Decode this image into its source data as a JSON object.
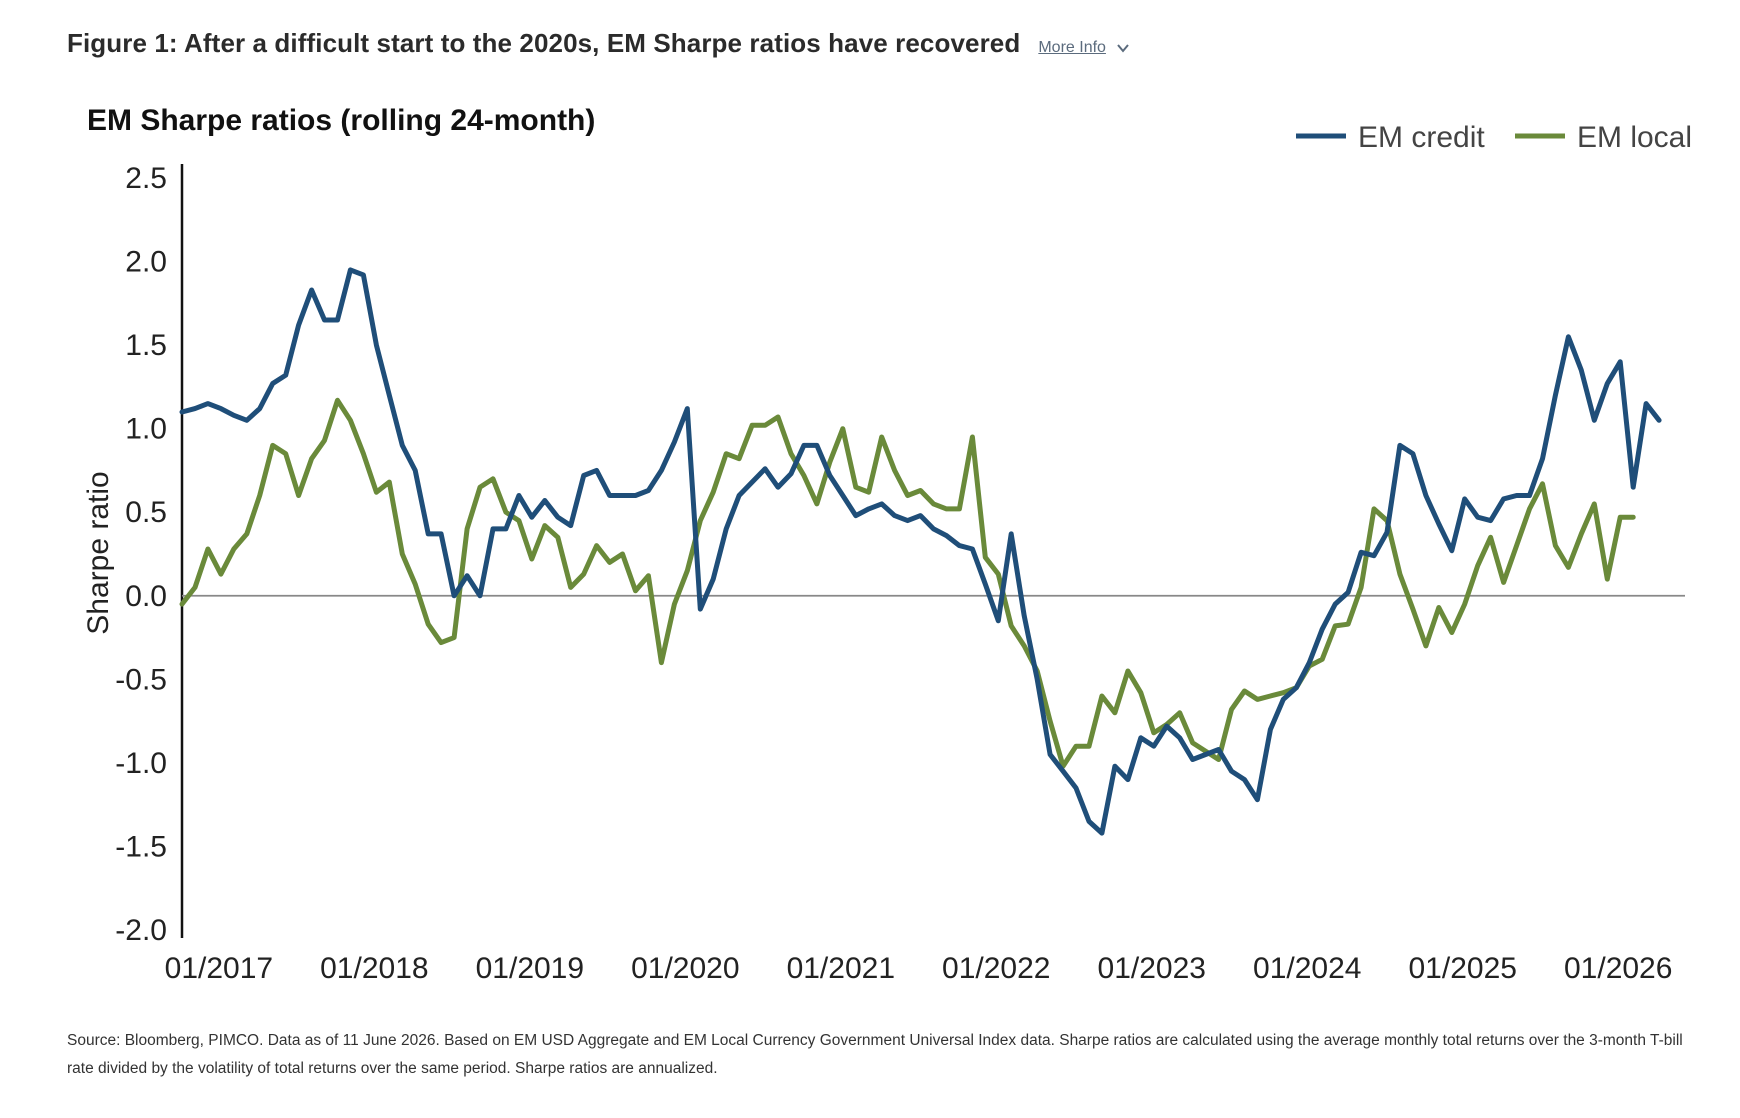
{
  "figure": {
    "title": "Figure 1: After a difficult start to the 2020s, EM Sharpe ratios have recovered",
    "more_info_label": "More Info"
  },
  "source_note": "Source: Bloomberg, PIMCO. Data as of 11 June 2026. Based on EM USD Aggregate and EM Local Currency Government Universal Index data. Sharpe ratios are calculated using the average monthly total returns over the 3-month T-bill rate divided by the volatility of total returns over the same period. Sharpe ratios are annualized.",
  "colors": {
    "em_credit": "#1f4e79",
    "em_local": "#6a8a3a",
    "axis": "#111111",
    "zero_line": "#888888"
  },
  "chart_data": {
    "type": "line",
    "title": "EM Sharpe ratios (rolling 24-month)",
    "xlabel": "",
    "ylabel": "Sharpe ratio",
    "ylim": [
      -2.0,
      2.5
    ],
    "yticks": [
      "2.5",
      "2.0",
      "1.5",
      "1.0",
      "0.5",
      "0.0",
      "-0.5",
      "-1.0",
      "-1.5",
      "-2.0"
    ],
    "xlim": [
      "2016-10",
      "2026-06"
    ],
    "xticks": [
      {
        "label": "01/2017",
        "date": "2017-01"
      },
      {
        "label": "01/2018",
        "date": "2018-01"
      },
      {
        "label": "01/2019",
        "date": "2019-01"
      },
      {
        "label": "01/2020",
        "date": "2020-01"
      },
      {
        "label": "01/2021",
        "date": "2021-01"
      },
      {
        "label": "01/2022",
        "date": "2022-01"
      },
      {
        "label": "01/2023",
        "date": "2023-01"
      },
      {
        "label": "01/2024",
        "date": "2024-01"
      },
      {
        "label": "01/2025",
        "date": "2025-01"
      },
      {
        "label": "01/2026",
        "date": "2026-01"
      }
    ],
    "grid": false,
    "legend_position": "top-right",
    "series": [
      {
        "name": "EM credit",
        "points": [
          [
            "2016-10",
            1.1
          ],
          [
            "2016-11",
            1.12
          ],
          [
            "2016-12",
            1.15
          ],
          [
            "2017-01",
            1.12
          ],
          [
            "2017-02",
            1.08
          ],
          [
            "2017-03",
            1.05
          ],
          [
            "2017-04",
            1.12
          ],
          [
            "2017-05",
            1.27
          ],
          [
            "2017-06",
            1.32
          ],
          [
            "2017-07",
            1.62
          ],
          [
            "2017-08",
            1.83
          ],
          [
            "2017-09",
            1.65
          ],
          [
            "2017-10",
            1.65
          ],
          [
            "2017-11",
            1.95
          ],
          [
            "2017-12",
            1.92
          ],
          [
            "2018-01",
            1.5
          ],
          [
            "2018-02",
            1.2
          ],
          [
            "2018-03",
            0.9
          ],
          [
            "2018-04",
            0.75
          ],
          [
            "2018-05",
            0.37
          ],
          [
            "2018-06",
            0.37
          ],
          [
            "2018-07",
            0.0
          ],
          [
            "2018-08",
            0.12
          ],
          [
            "2018-09",
            0.0
          ],
          [
            "2018-10",
            0.4
          ],
          [
            "2018-11",
            0.4
          ],
          [
            "2018-12",
            0.6
          ],
          [
            "2019-01",
            0.47
          ],
          [
            "2019-02",
            0.57
          ],
          [
            "2019-03",
            0.47
          ],
          [
            "2019-04",
            0.42
          ],
          [
            "2019-05",
            0.72
          ],
          [
            "2019-06",
            0.75
          ],
          [
            "2019-07",
            0.6
          ],
          [
            "2019-08",
            0.6
          ],
          [
            "2019-09",
            0.6
          ],
          [
            "2019-10",
            0.63
          ],
          [
            "2019-11",
            0.75
          ],
          [
            "2019-12",
            0.92
          ],
          [
            "2020-01",
            1.12
          ],
          [
            "2020-02",
            -0.08
          ],
          [
            "2020-03",
            0.1
          ],
          [
            "2020-04",
            0.4
          ],
          [
            "2020-05",
            0.6
          ],
          [
            "2020-06",
            0.68
          ],
          [
            "2020-07",
            0.76
          ],
          [
            "2020-08",
            0.65
          ],
          [
            "2020-09",
            0.73
          ],
          [
            "2020-10",
            0.9
          ],
          [
            "2020-11",
            0.9
          ],
          [
            "2020-12",
            0.72
          ],
          [
            "2021-01",
            0.6
          ],
          [
            "2021-02",
            0.48
          ],
          [
            "2021-03",
            0.52
          ],
          [
            "2021-04",
            0.55
          ],
          [
            "2021-05",
            0.48
          ],
          [
            "2021-06",
            0.45
          ],
          [
            "2021-07",
            0.48
          ],
          [
            "2021-08",
            0.4
          ],
          [
            "2021-09",
            0.36
          ],
          [
            "2021-10",
            0.3
          ],
          [
            "2021-11",
            0.28
          ],
          [
            "2021-12",
            0.07
          ],
          [
            "2022-01",
            -0.15
          ],
          [
            "2022-02",
            0.37
          ],
          [
            "2022-03",
            -0.12
          ],
          [
            "2022-04",
            -0.5
          ],
          [
            "2022-05",
            -0.95
          ],
          [
            "2022-06",
            -1.05
          ],
          [
            "2022-07",
            -1.15
          ],
          [
            "2022-08",
            -1.35
          ],
          [
            "2022-09",
            -1.42
          ],
          [
            "2022-10",
            -1.02
          ],
          [
            "2022-11",
            -1.1
          ],
          [
            "2022-12",
            -0.85
          ],
          [
            "2023-01",
            -0.9
          ],
          [
            "2023-02",
            -0.78
          ],
          [
            "2023-03",
            -0.85
          ],
          [
            "2023-04",
            -0.98
          ],
          [
            "2023-05",
            -0.95
          ],
          [
            "2023-06",
            -0.92
          ],
          [
            "2023-07",
            -1.05
          ],
          [
            "2023-08",
            -1.1
          ],
          [
            "2023-09",
            -1.22
          ],
          [
            "2023-10",
            -0.8
          ],
          [
            "2023-11",
            -0.62
          ],
          [
            "2023-12",
            -0.55
          ],
          [
            "2024-01",
            -0.4
          ],
          [
            "2024-02",
            -0.2
          ],
          [
            "2024-03",
            -0.05
          ],
          [
            "2024-04",
            0.02
          ],
          [
            "2024-05",
            0.26
          ],
          [
            "2024-06",
            0.24
          ],
          [
            "2024-07",
            0.38
          ],
          [
            "2024-08",
            0.9
          ],
          [
            "2024-09",
            0.85
          ],
          [
            "2024-10",
            0.6
          ],
          [
            "2024-11",
            0.43
          ],
          [
            "2024-12",
            0.27
          ],
          [
            "2025-01",
            0.58
          ],
          [
            "2025-02",
            0.47
          ],
          [
            "2025-03",
            0.45
          ],
          [
            "2025-04",
            0.58
          ],
          [
            "2025-05",
            0.6
          ],
          [
            "2025-06",
            0.6
          ],
          [
            "2025-07",
            0.82
          ],
          [
            "2025-08",
            1.2
          ],
          [
            "2025-09",
            1.55
          ],
          [
            "2025-10",
            1.35
          ],
          [
            "2025-11",
            1.05
          ],
          [
            "2025-12",
            1.27
          ],
          [
            "2026-01",
            1.4
          ],
          [
            "2026-02",
            0.65
          ],
          [
            "2026-03",
            1.15
          ],
          [
            "2026-04",
            1.05
          ]
        ]
      },
      {
        "name": "EM local",
        "points": [
          [
            "2016-10",
            -0.05
          ],
          [
            "2016-11",
            0.05
          ],
          [
            "2016-12",
            0.28
          ],
          [
            "2017-01",
            0.13
          ],
          [
            "2017-02",
            0.28
          ],
          [
            "2017-03",
            0.37
          ],
          [
            "2017-04",
            0.6
          ],
          [
            "2017-05",
            0.9
          ],
          [
            "2017-06",
            0.85
          ],
          [
            "2017-07",
            0.6
          ],
          [
            "2017-08",
            0.82
          ],
          [
            "2017-09",
            0.93
          ],
          [
            "2017-10",
            1.17
          ],
          [
            "2017-11",
            1.05
          ],
          [
            "2017-12",
            0.85
          ],
          [
            "2018-01",
            0.62
          ],
          [
            "2018-02",
            0.68
          ],
          [
            "2018-03",
            0.25
          ],
          [
            "2018-04",
            0.07
          ],
          [
            "2018-05",
            -0.17
          ],
          [
            "2018-06",
            -0.28
          ],
          [
            "2018-07",
            -0.25
          ],
          [
            "2018-08",
            0.4
          ],
          [
            "2018-09",
            0.65
          ],
          [
            "2018-10",
            0.7
          ],
          [
            "2018-11",
            0.5
          ],
          [
            "2018-12",
            0.45
          ],
          [
            "2019-01",
            0.22
          ],
          [
            "2019-02",
            0.42
          ],
          [
            "2019-03",
            0.35
          ],
          [
            "2019-04",
            0.05
          ],
          [
            "2019-05",
            0.13
          ],
          [
            "2019-06",
            0.3
          ],
          [
            "2019-07",
            0.2
          ],
          [
            "2019-08",
            0.25
          ],
          [
            "2019-09",
            0.03
          ],
          [
            "2019-10",
            0.12
          ],
          [
            "2019-11",
            -0.4
          ],
          [
            "2019-12",
            -0.05
          ],
          [
            "2020-01",
            0.15
          ],
          [
            "2020-02",
            0.45
          ],
          [
            "2020-03",
            0.62
          ],
          [
            "2020-04",
            0.85
          ],
          [
            "2020-05",
            0.82
          ],
          [
            "2020-06",
            1.02
          ],
          [
            "2020-07",
            1.02
          ],
          [
            "2020-08",
            1.07
          ],
          [
            "2020-09",
            0.85
          ],
          [
            "2020-10",
            0.72
          ],
          [
            "2020-11",
            0.55
          ],
          [
            "2020-12",
            0.8
          ],
          [
            "2021-01",
            1.0
          ],
          [
            "2021-02",
            0.65
          ],
          [
            "2021-03",
            0.62
          ],
          [
            "2021-04",
            0.95
          ],
          [
            "2021-05",
            0.75
          ],
          [
            "2021-06",
            0.6
          ],
          [
            "2021-07",
            0.63
          ],
          [
            "2021-08",
            0.55
          ],
          [
            "2021-09",
            0.52
          ],
          [
            "2021-10",
            0.52
          ],
          [
            "2021-11",
            0.95
          ],
          [
            "2021-12",
            0.23
          ],
          [
            "2022-01",
            0.13
          ],
          [
            "2022-02",
            -0.18
          ],
          [
            "2022-03",
            -0.3
          ],
          [
            "2022-04",
            -0.45
          ],
          [
            "2022-05",
            -0.75
          ],
          [
            "2022-06",
            -1.02
          ],
          [
            "2022-07",
            -0.9
          ],
          [
            "2022-08",
            -0.9
          ],
          [
            "2022-09",
            -0.6
          ],
          [
            "2022-10",
            -0.7
          ],
          [
            "2022-11",
            -0.45
          ],
          [
            "2022-12",
            -0.58
          ],
          [
            "2023-01",
            -0.82
          ],
          [
            "2023-02",
            -0.77
          ],
          [
            "2023-03",
            -0.7
          ],
          [
            "2023-04",
            -0.88
          ],
          [
            "2023-05",
            -0.93
          ],
          [
            "2023-06",
            -0.98
          ],
          [
            "2023-07",
            -0.68
          ],
          [
            "2023-08",
            -0.57
          ],
          [
            "2023-09",
            -0.62
          ],
          [
            "2023-10",
            -0.6
          ],
          [
            "2023-11",
            -0.58
          ],
          [
            "2023-12",
            -0.55
          ],
          [
            "2024-01",
            -0.42
          ],
          [
            "2024-02",
            -0.38
          ],
          [
            "2024-03",
            -0.18
          ],
          [
            "2024-04",
            -0.17
          ],
          [
            "2024-05",
            0.05
          ],
          [
            "2024-06",
            0.52
          ],
          [
            "2024-07",
            0.45
          ],
          [
            "2024-08",
            0.13
          ],
          [
            "2024-09",
            -0.08
          ],
          [
            "2024-10",
            -0.3
          ],
          [
            "2024-11",
            -0.07
          ],
          [
            "2024-12",
            -0.22
          ],
          [
            "2025-01",
            -0.05
          ],
          [
            "2025-02",
            0.18
          ],
          [
            "2025-03",
            0.35
          ],
          [
            "2025-04",
            0.08
          ],
          [
            "2025-05",
            0.3
          ],
          [
            "2025-06",
            0.52
          ],
          [
            "2025-07",
            0.67
          ],
          [
            "2025-08",
            0.3
          ],
          [
            "2025-09",
            0.17
          ],
          [
            "2025-10",
            0.37
          ],
          [
            "2025-11",
            0.55
          ],
          [
            "2025-12",
            0.1
          ],
          [
            "2026-01",
            0.47
          ],
          [
            "2026-02",
            0.47
          ]
        ]
      }
    ]
  }
}
